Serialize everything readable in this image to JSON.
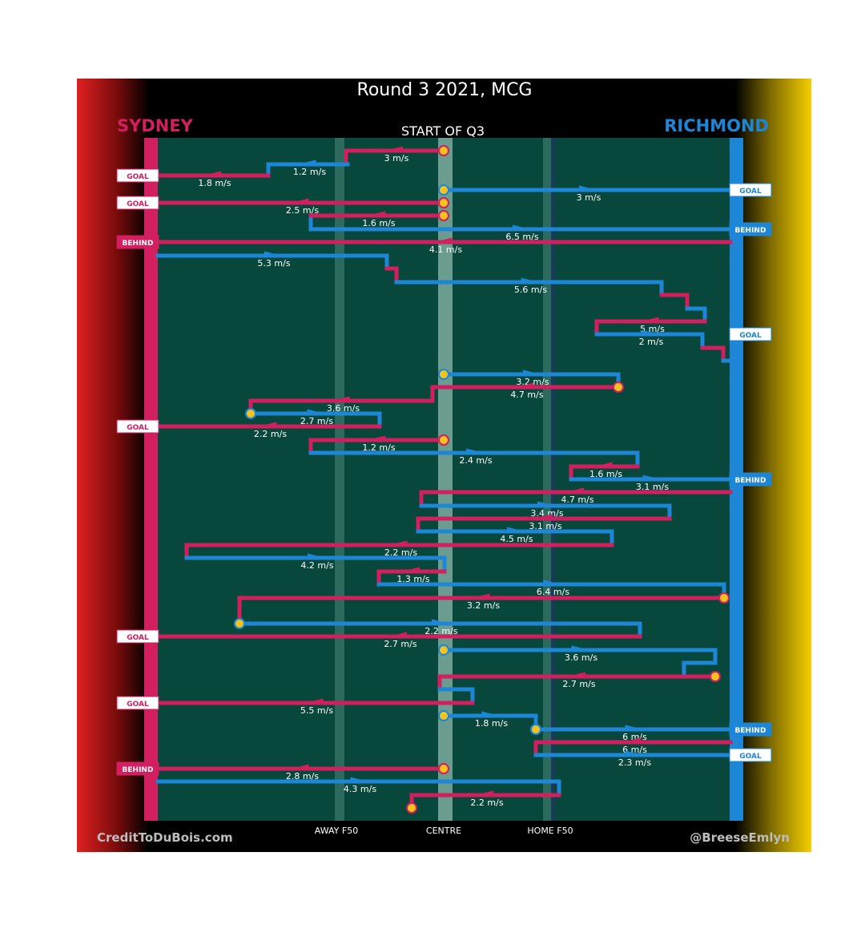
{
  "chart_data": {
    "type": "line",
    "title": "Round 3 2021, MCG",
    "subtitle": "START OF Q3",
    "teams": {
      "left": "SYDNEY",
      "right": "RICHMOND"
    },
    "x_axis_labels": [
      "AWAY F50",
      "CENTRE",
      "HOME F50"
    ],
    "credits": {
      "left": "CreditToDuBois.com",
      "right": "@BreeseEmlyn"
    },
    "colors": {
      "sydney": "#d21f5f",
      "richmond": "#1d86d6",
      "field": "#08473b",
      "ball": "#f4c41c",
      "left_gradient": "#e02020",
      "right_gradient": "#f5cf00"
    },
    "chains": [
      {
        "team": "sydney",
        "speed": "3 m/s",
        "result": ""
      },
      {
        "team": "richmond",
        "speed": "1.2 m/s",
        "result": ""
      },
      {
        "team": "sydney",
        "speed": "1.8 m/s",
        "result": "GOAL"
      },
      {
        "team": "richmond",
        "speed": "3 m/s",
        "result": "GOAL"
      },
      {
        "team": "sydney",
        "speed": "2.5 m/s",
        "result": "GOAL"
      },
      {
        "team": "sydney",
        "speed": "1.6 m/s",
        "result": ""
      },
      {
        "team": "richmond",
        "speed": "6.5 m/s",
        "result": "BEHIND"
      },
      {
        "team": "sydney",
        "speed": "4.1 m/s",
        "result": "BEHIND"
      },
      {
        "team": "richmond",
        "speed": "5.3 m/s",
        "result": ""
      },
      {
        "team": "richmond",
        "speed": "5.6 m/s",
        "result": ""
      },
      {
        "team": "sydney",
        "speed": "5 m/s",
        "result": ""
      },
      {
        "team": "richmond",
        "speed": "2 m/s",
        "result": "GOAL"
      },
      {
        "team": "richmond",
        "speed": "3.2 m/s",
        "result": ""
      },
      {
        "team": "sydney",
        "speed": "4.7 m/s",
        "result": ""
      },
      {
        "team": "sydney",
        "speed": "3.6 m/s",
        "result": ""
      },
      {
        "team": "richmond",
        "speed": "2.7 m/s",
        "result": ""
      },
      {
        "team": "sydney",
        "speed": "2.2 m/s",
        "result": "GOAL"
      },
      {
        "team": "sydney",
        "speed": "1.2 m/s",
        "result": ""
      },
      {
        "team": "richmond",
        "speed": "2.4 m/s",
        "result": ""
      },
      {
        "team": "sydney",
        "speed": "1.6 m/s",
        "result": ""
      },
      {
        "team": "richmond",
        "speed": "3.1 m/s",
        "result": "BEHIND"
      },
      {
        "team": "sydney",
        "speed": "4.7 m/s",
        "result": ""
      },
      {
        "team": "richmond",
        "speed": "3.4 m/s",
        "result": ""
      },
      {
        "team": "sydney",
        "speed": "3.1 m/s",
        "result": ""
      },
      {
        "team": "richmond",
        "speed": "4.5 m/s",
        "result": ""
      },
      {
        "team": "sydney",
        "speed": "2.2 m/s",
        "result": ""
      },
      {
        "team": "richmond",
        "speed": "4.2 m/s",
        "result": ""
      },
      {
        "team": "sydney",
        "speed": "1.3 m/s",
        "result": ""
      },
      {
        "team": "richmond",
        "speed": "6.4 m/s",
        "result": ""
      },
      {
        "team": "sydney",
        "speed": "3.2 m/s",
        "result": ""
      },
      {
        "team": "richmond",
        "speed": "2.2 m/s",
        "result": ""
      },
      {
        "team": "sydney",
        "speed": "2.7 m/s",
        "result": "GOAL"
      },
      {
        "team": "richmond",
        "speed": "3.6 m/s",
        "result": ""
      },
      {
        "team": "sydney",
        "speed": "2.7 m/s",
        "result": ""
      },
      {
        "team": "sydney",
        "speed": "5.5 m/s",
        "result": "GOAL"
      },
      {
        "team": "richmond",
        "speed": "1.8 m/s",
        "result": ""
      },
      {
        "team": "richmond",
        "speed": "6 m/s",
        "result": "BEHIND"
      },
      {
        "team": "sydney",
        "speed": "6 m/s",
        "result": ""
      },
      {
        "team": "richmond",
        "speed": "2.3 m/s",
        "result": "GOAL"
      },
      {
        "team": "sydney",
        "speed": "2.8 m/s",
        "result": "BEHIND"
      },
      {
        "team": "richmond",
        "speed": "4.3 m/s",
        "result": ""
      },
      {
        "team": "sydney",
        "speed": "2.2 m/s",
        "result": ""
      }
    ]
  }
}
